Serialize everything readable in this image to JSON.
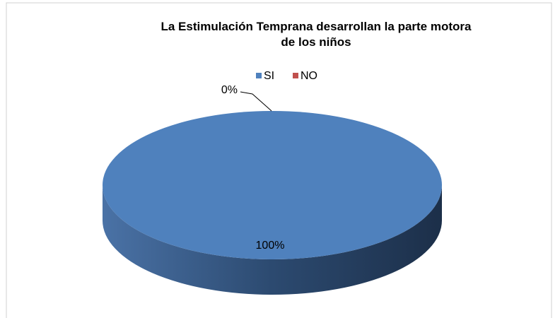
{
  "chart_data": {
    "type": "pie",
    "title": "La Estimulación Temprana desarrollan la parte motora de los niños",
    "categories": [
      "SI",
      "NO"
    ],
    "values": [
      100,
      0
    ],
    "value_labels": [
      "100%",
      "0%"
    ],
    "colors": [
      "#4f81bd",
      "#c0504d"
    ],
    "legend": "top"
  }
}
